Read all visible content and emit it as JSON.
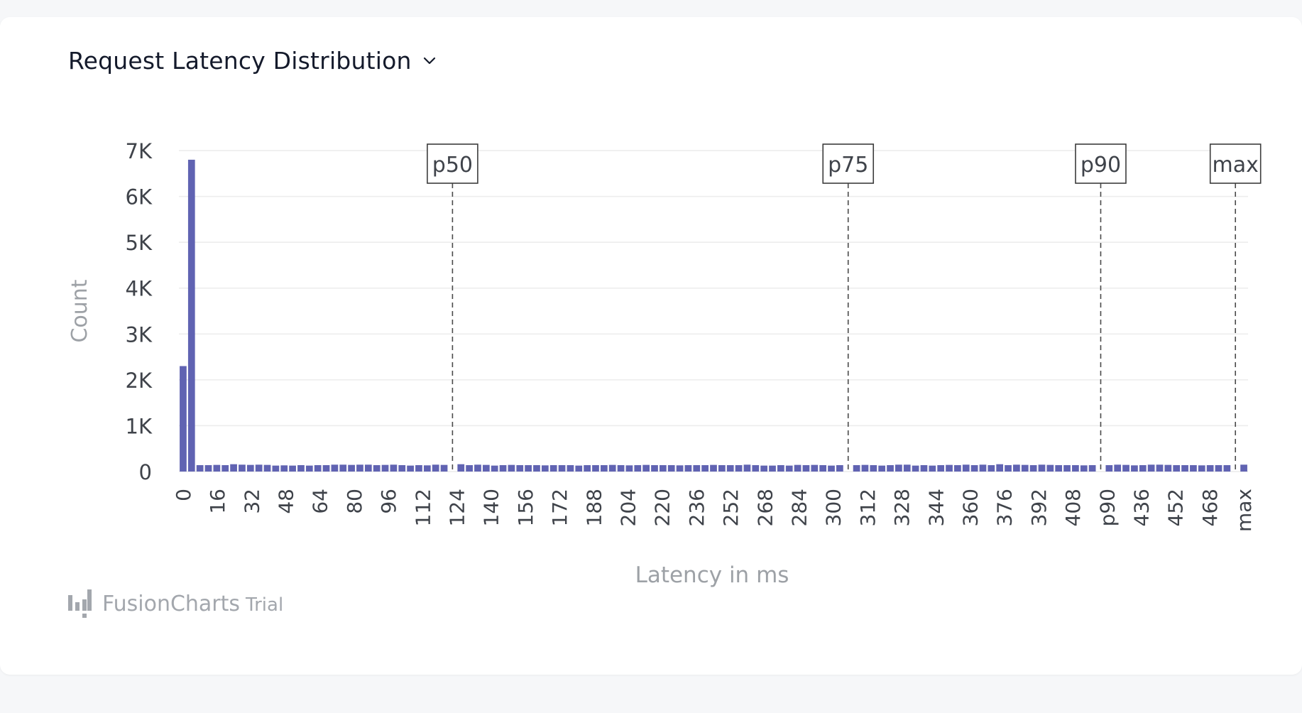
{
  "header": {
    "title": "Request Latency Distribution",
    "dropdown_icon": "chevron-down-icon"
  },
  "watermark": {
    "brand": "FusionCharts",
    "suffix": "Trial",
    "icon": "fusioncharts-logo-icon"
  },
  "chart_data": {
    "type": "bar",
    "xlabel": "Latency in ms",
    "ylabel": "Count",
    "ylim": [
      0,
      7000
    ],
    "y_ticks": [
      "0",
      "1K",
      "2K",
      "3K",
      "4K",
      "5K",
      "6K",
      "7K"
    ],
    "bar_color": "#6063b2",
    "grid": true,
    "x_tick_labels": [
      "0",
      "16",
      "32",
      "48",
      "64",
      "80",
      "96",
      "112",
      "124",
      "140",
      "156",
      "172",
      "188",
      "204",
      "220",
      "236",
      "252",
      "268",
      "284",
      "300",
      "312",
      "328",
      "344",
      "360",
      "376",
      "392",
      "408",
      "p90",
      "436",
      "452",
      "468",
      "max"
    ],
    "markers": [
      {
        "label": "p50",
        "bin": 32
      },
      {
        "label": "p75",
        "bin": 79
      },
      {
        "label": "p90",
        "bin": 109
      },
      {
        "label": "max",
        "bin": 125
      }
    ],
    "values": [
      2300,
      6800,
      140,
      140,
      145,
      140,
      160,
      150,
      145,
      150,
      145,
      130,
      135,
      130,
      140,
      130,
      140,
      140,
      150,
      150,
      145,
      150,
      150,
      140,
      145,
      150,
      140,
      130,
      140,
      135,
      150,
      145,
      0,
      160,
      140,
      150,
      145,
      130,
      140,
      145,
      140,
      140,
      140,
      135,
      140,
      140,
      140,
      130,
      140,
      140,
      140,
      145,
      140,
      135,
      140,
      145,
      140,
      140,
      140,
      135,
      140,
      140,
      140,
      145,
      140,
      140,
      140,
      150,
      140,
      130,
      130,
      140,
      130,
      145,
      140,
      145,
      140,
      130,
      140,
      0,
      140,
      145,
      140,
      130,
      140,
      150,
      150,
      130,
      140,
      130,
      140,
      145,
      140,
      150,
      140,
      150,
      140,
      160,
      140,
      150,
      145,
      140,
      150,
      145,
      140,
      140,
      140,
      135,
      140,
      0,
      140,
      150,
      145,
      135,
      140,
      150,
      150,
      145,
      140,
      140,
      140,
      135,
      140,
      140,
      140,
      0,
      150
    ]
  }
}
